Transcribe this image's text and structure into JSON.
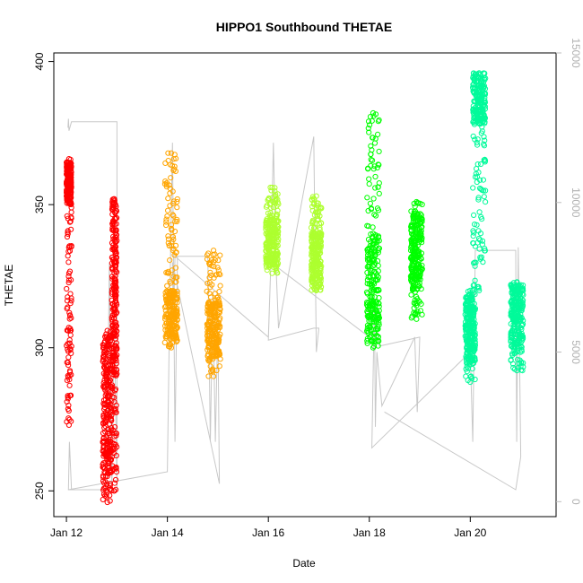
{
  "chart_data": {
    "type": "scatter",
    "title": "HIPPO1 Southbound THETAE",
    "xlabel": "Date",
    "ylabel": "THETAE",
    "x_axis": {
      "min_day": 11.75,
      "max_day": 21.7,
      "ticks": [
        {
          "day": 12,
          "label": "Jan 12"
        },
        {
          "day": 14,
          "label": "Jan 14"
        },
        {
          "day": 16,
          "label": "Jan 16"
        },
        {
          "day": 18,
          "label": "Jan 18"
        },
        {
          "day": 20,
          "label": "Jan 20"
        }
      ]
    },
    "y_axis_left": {
      "min": 241,
      "max": 403,
      "ticks": [
        250,
        300,
        350,
        400
      ]
    },
    "y_axis_right": {
      "min": -500,
      "max": 15000,
      "ticks": [
        0,
        5000,
        10000,
        15000
      ],
      "color": "#bebebe"
    },
    "altitude_trace": {
      "color": "#c8c8c8",
      "points": [
        [
          12.03,
          12500
        ],
        [
          12.04,
          12800
        ],
        [
          12.05,
          12400
        ],
        [
          12.1,
          12700
        ],
        [
          13.0,
          12700
        ],
        [
          13.0,
          400
        ],
        [
          12.95,
          6000
        ],
        [
          12.9,
          400
        ],
        [
          12.85,
          8000
        ],
        [
          12.8,
          400
        ],
        [
          12.1,
          400
        ],
        [
          12.06,
          2000
        ],
        [
          12.04,
          400
        ],
        [
          14.0,
          1000
        ],
        [
          14.05,
          7000
        ],
        [
          14.1,
          12000
        ],
        [
          14.15,
          2000
        ],
        [
          14.2,
          8200
        ],
        [
          14.8,
          8200
        ],
        [
          14.85,
          2000
        ],
        [
          14.9,
          7000
        ],
        [
          14.95,
          2000
        ],
        [
          15.0,
          6000
        ],
        [
          15.03,
          600
        ],
        [
          14.1,
          8000
        ],
        [
          14.12,
          6000
        ],
        [
          14.15,
          8200
        ],
        [
          16.0,
          5500
        ],
        [
          16.05,
          8000
        ],
        [
          16.1,
          12000
        ],
        [
          16.15,
          8000
        ],
        [
          16.2,
          5800
        ],
        [
          16.9,
          12200
        ],
        [
          16.95,
          5000
        ],
        [
          17.0,
          5800
        ],
        [
          16.9,
          5800
        ],
        [
          16.0,
          5400
        ],
        [
          16.05,
          8000
        ],
        [
          18.0,
          5500
        ],
        [
          18.1,
          6800
        ],
        [
          18.12,
          2500
        ],
        [
          18.15,
          5000
        ],
        [
          18.25,
          3200
        ],
        [
          18.9,
          5500
        ],
        [
          18.95,
          3000
        ],
        [
          19.0,
          5500
        ],
        [
          18.2,
          5200
        ],
        [
          18.1,
          6600
        ],
        [
          18.05,
          1800
        ],
        [
          20.0,
          5000
        ],
        [
          20.05,
          2000
        ],
        [
          20.1,
          8400
        ],
        [
          20.2,
          8400
        ],
        [
          20.9,
          8400
        ],
        [
          20.92,
          2000
        ],
        [
          20.95,
          8500
        ],
        [
          21.0,
          1500
        ],
        [
          20.9,
          400
        ],
        [
          18.3,
          3000
        ]
      ]
    },
    "series": [
      {
        "color": "#ff0000",
        "segments": [
          {
            "x0": 12.0,
            "x1": 12.1,
            "ylo": 273,
            "yhi": 366,
            "dense_lo": 350,
            "dense_hi": 365
          },
          {
            "x0": 12.72,
            "x1": 12.9,
            "ylo": 246,
            "yhi": 306,
            "dense_lo": 255,
            "dense_hi": 305
          },
          {
            "x0": 12.9,
            "x1": 13.0,
            "ylo": 250,
            "yhi": 352,
            "dense_lo": 290,
            "dense_hi": 352
          }
        ]
      },
      {
        "color": "#ffa500",
        "segments": [
          {
            "x0": 13.95,
            "x1": 14.2,
            "ylo": 300,
            "yhi": 368,
            "dense_lo": 303,
            "dense_hi": 320
          },
          {
            "x0": 14.78,
            "x1": 15.05,
            "ylo": 290,
            "yhi": 334,
            "dense_lo": 296,
            "dense_hi": 316
          }
        ]
      },
      {
        "color": "#adff2f",
        "segments": [
          {
            "x0": 15.95,
            "x1": 16.2,
            "ylo": 326,
            "yhi": 356,
            "dense_lo": 328,
            "dense_hi": 345
          },
          {
            "x0": 16.85,
            "x1": 17.05,
            "ylo": 320,
            "yhi": 353,
            "dense_lo": 322,
            "dense_hi": 340
          }
        ]
      },
      {
        "color": "#00ff00",
        "segments": [
          {
            "x0": 17.95,
            "x1": 18.2,
            "ylo": 300,
            "yhi": 382,
            "dense_lo": 302,
            "dense_hi": 340
          },
          {
            "x0": 18.82,
            "x1": 19.05,
            "ylo": 310,
            "yhi": 351,
            "dense_lo": 320,
            "dense_hi": 348
          }
        ]
      },
      {
        "color": "#00fa9a",
        "segments": [
          {
            "x0": 19.9,
            "x1": 20.1,
            "ylo": 288,
            "yhi": 320,
            "dense_lo": 295,
            "dense_hi": 318
          },
          {
            "x0": 20.05,
            "x1": 20.3,
            "ylo": 320,
            "yhi": 396,
            "dense_lo": 378,
            "dense_hi": 396
          },
          {
            "x0": 20.8,
            "x1": 21.05,
            "ylo": 292,
            "yhi": 323,
            "dense_lo": 300,
            "dense_hi": 322
          }
        ]
      }
    ]
  }
}
